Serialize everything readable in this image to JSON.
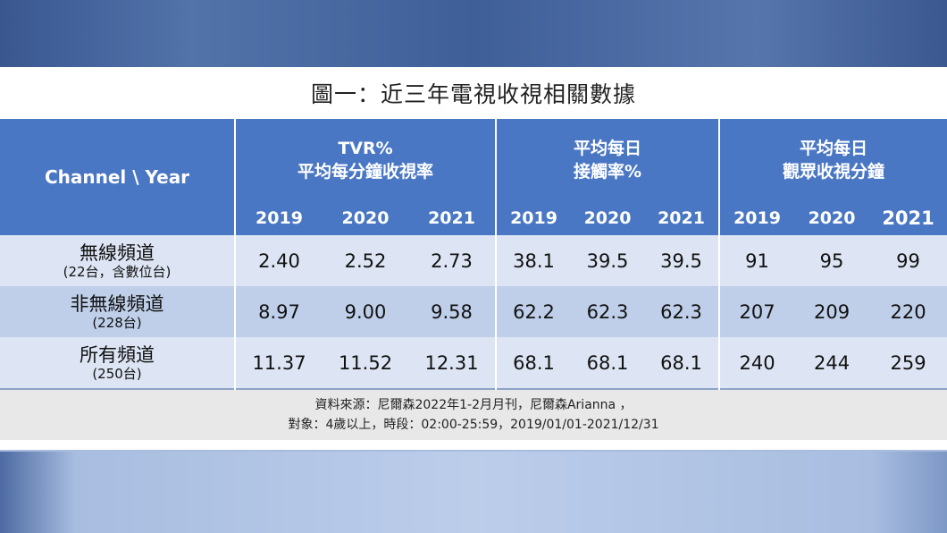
{
  "title": "圖一：近三年電視收視相關數據",
  "corner_label": "Channel \\ Year",
  "groups": [
    {
      "line1": "TVR%",
      "line2": "平均每分鐘收視率",
      "years": [
        "2019",
        "2020",
        "2021"
      ]
    },
    {
      "line1": "平均每日",
      "line2": "接觸率%",
      "years": [
        "2019",
        "2020",
        "2021"
      ]
    },
    {
      "line1": "平均每日",
      "line2": "觀眾收視分鐘",
      "years": [
        "2019",
        "2020",
        "2021"
      ]
    }
  ],
  "rows": [
    {
      "name": "無線頻道",
      "sub": "(22台，含數位台)",
      "values": [
        "2.40",
        "2.52",
        "2.73",
        "38.1",
        "39.5",
        "39.5",
        "91",
        "95",
        "99"
      ]
    },
    {
      "name": "非無線頻道",
      "sub": "(228台)",
      "values": [
        "8.97",
        "9.00",
        "9.58",
        "62.2",
        "62.3",
        "62.3",
        "207",
        "209",
        "220"
      ]
    },
    {
      "name": "所有頻道",
      "sub": "(250台)",
      "values": [
        "11.37",
        "11.52",
        "12.31",
        "68.1",
        "68.1",
        "68.1",
        "240",
        "244",
        "259"
      ]
    }
  ],
  "footer": {
    "line1": "資料來源：尼爾森2022年1-2月月刊，尼爾森Arianna ，",
    "line2": "對象：4歲以上，時段：02:00-25:59，2019/01/01-2021/12/31"
  },
  "colors": {
    "header_bg": "#4a77c4",
    "row_light": "#dde5f4",
    "row_dark": "#bfcfe9",
    "footer_bg": "#e8e8e8"
  },
  "chart_data": {
    "type": "table",
    "title": "圖一：近三年電視收視相關數據",
    "columns": [
      "TVR% 平均每分鐘收視率",
      "平均每日 接觸率%",
      "平均每日 觀眾收視分鐘"
    ],
    "years": [
      "2019",
      "2020",
      "2021"
    ],
    "series": [
      {
        "name": "無線頻道",
        "values": [
          2.4,
          2.52,
          2.73,
          38.1,
          39.5,
          39.5,
          91,
          95,
          99
        ]
      },
      {
        "name": "非無線頻道",
        "values": [
          8.97,
          9.0,
          9.58,
          62.2,
          62.3,
          62.3,
          207,
          209,
          220
        ]
      },
      {
        "name": "所有頻道",
        "values": [
          11.37,
          11.52,
          12.31,
          68.1,
          68.1,
          68.1,
          240,
          244,
          259
        ]
      }
    ]
  }
}
